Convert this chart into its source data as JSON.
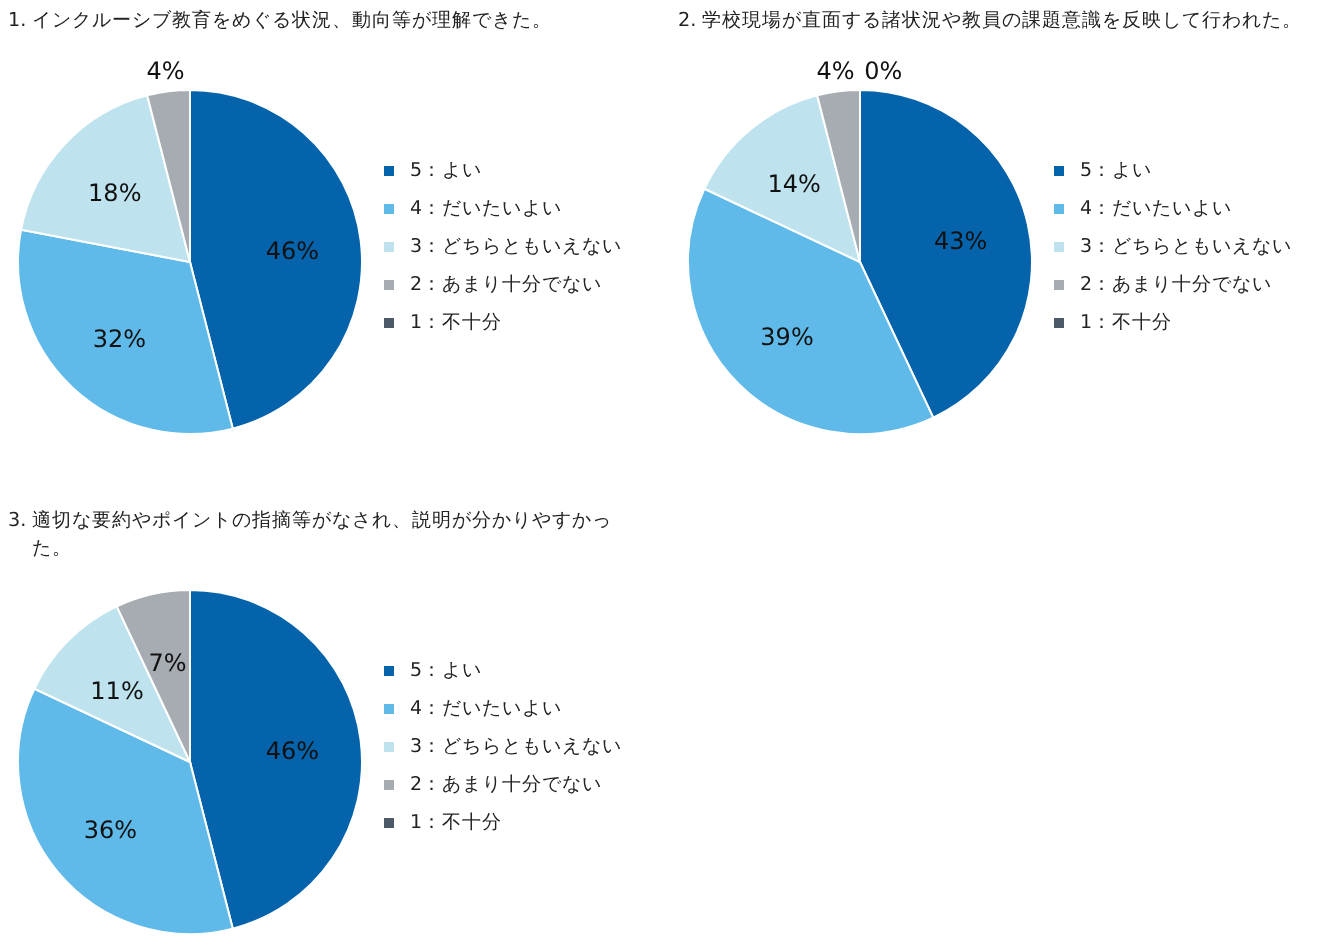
{
  "chart_data": [
    {
      "type": "pie",
      "title": "1. インクルーシブ教育をめぐる状況、動向等が理解できた。",
      "categories": [
        "5：よい",
        "4：だいたいよい",
        "3：どちらともいえない",
        "2：あまり十分でない",
        "1：不十分"
      ],
      "values": [
        46,
        32,
        18,
        4,
        0
      ],
      "colors": [
        "#0563ab",
        "#5fbae9",
        "#bee3ee",
        "#a7acb2",
        "#4b5968"
      ],
      "value_labels": [
        "46%",
        "32%",
        "18%",
        "4%",
        null
      ],
      "legend": "right"
    },
    {
      "type": "pie",
      "title": "2. 学校現場が直面する諸状況や教員の課題意識を反映して行われた。",
      "categories": [
        "5：よい",
        "4：だいたいよい",
        "3：どちらともいえない",
        "2：あまり十分でない",
        "1：不十分"
      ],
      "values": [
        43,
        39,
        14,
        4,
        0
      ],
      "colors": [
        "#0563ab",
        "#5fbae9",
        "#bee3ee",
        "#a7acb2",
        "#4b5968"
      ],
      "value_labels": [
        "43%",
        "39%",
        "14%",
        "4%",
        "0%"
      ],
      "legend": "right"
    },
    {
      "type": "pie",
      "title": "3. 適切な要約やポイントの指摘等がなされ、説明が分かりやすかった。",
      "categories": [
        "5：よい",
        "4：だいたいよい",
        "3：どちらともいえない",
        "2：あまり十分でない",
        "1：不十分"
      ],
      "values": [
        46,
        36,
        11,
        7,
        0
      ],
      "colors": [
        "#0563ab",
        "#5fbae9",
        "#bee3ee",
        "#a7acb2",
        "#4b5968"
      ],
      "value_labels": [
        "46%",
        "36%",
        "11%",
        "7%",
        null
      ],
      "legend": "right"
    }
  ]
}
